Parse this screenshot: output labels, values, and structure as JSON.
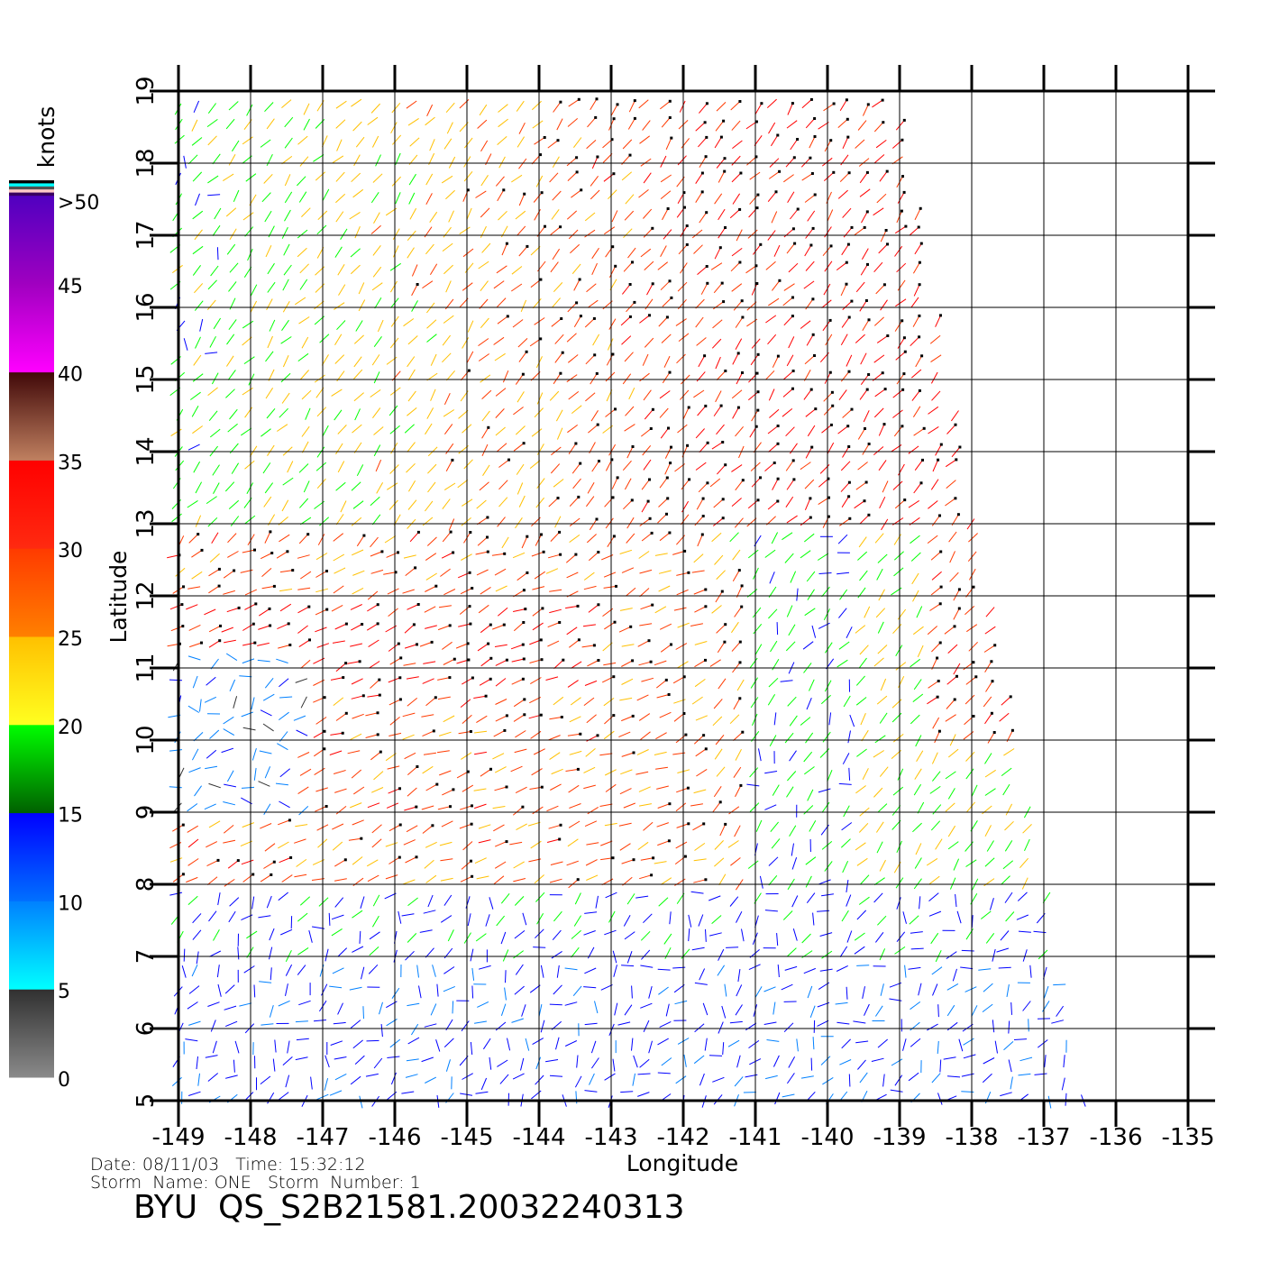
{
  "plot": {
    "xlabel": "Longitude",
    "ylabel": "Latitude",
    "lon_range": [
      -149,
      -135
    ],
    "lat_range": [
      5,
      19
    ],
    "lon_ticks": [
      "-149",
      "-148",
      "-147",
      "-146",
      "-145",
      "-144",
      "-143",
      "-142",
      "-141",
      "-140",
      "-139",
      "-138",
      "-137",
      "-136",
      "-135"
    ],
    "lat_ticks": [
      "5",
      "6",
      "7",
      "8",
      "9",
      "10",
      "11",
      "12",
      "13",
      "14",
      "15",
      "16",
      "17",
      "18",
      "19"
    ],
    "grid": true,
    "swath_lonlat": [
      [
        -149,
        19
      ],
      [
        -139,
        19
      ],
      [
        -136.4,
        5
      ],
      [
        -149,
        5
      ]
    ]
  },
  "colorbar": {
    "unit": "knots",
    "labels": [
      "0",
      "5",
      "10",
      "15",
      "20",
      "25",
      "30",
      "35",
      "40",
      "45",
      ">50"
    ],
    "segments": [
      {
        "from": 0,
        "to": 5,
        "bottom": "#8a8a8a",
        "top": "#303030"
      },
      {
        "from": 5,
        "to": 10,
        "bottom": "#00ffff",
        "top": "#0080ff"
      },
      {
        "from": 10,
        "to": 15,
        "bottom": "#0070ff",
        "top": "#0000ff"
      },
      {
        "from": 15,
        "to": 20,
        "bottom": "#006000",
        "top": "#00ff00"
      },
      {
        "from": 20,
        "to": 25,
        "bottom": "#ffff20",
        "top": "#ffc000"
      },
      {
        "from": 25,
        "to": 30,
        "bottom": "#ff8000",
        "top": "#ff3a00"
      },
      {
        "from": 30,
        "to": 35,
        "bottom": "#ff2a10",
        "top": "#ff0000"
      },
      {
        "from": 35,
        "to": 40,
        "bottom": "#c08060",
        "top": "#400808"
      },
      {
        "from": 40,
        "to": 45,
        "bottom": "#ff00ff",
        "top": "#a000c0"
      },
      {
        "from": 45,
        "to": 50,
        "bottom": "#a000c0",
        "top": "#5000c0"
      }
    ],
    "top_stripes": [
      "#000000",
      "#00ffff",
      "#505050",
      "#ffc8c8",
      "#3a0060"
    ]
  },
  "info": {
    "date_line": "Date: 08/11/03   Time: 15:32:12",
    "storm_line": "Storm  Name: ONE   Storm  Number: 1",
    "title": "BYU  QS_S2B21581.20032240313"
  }
}
